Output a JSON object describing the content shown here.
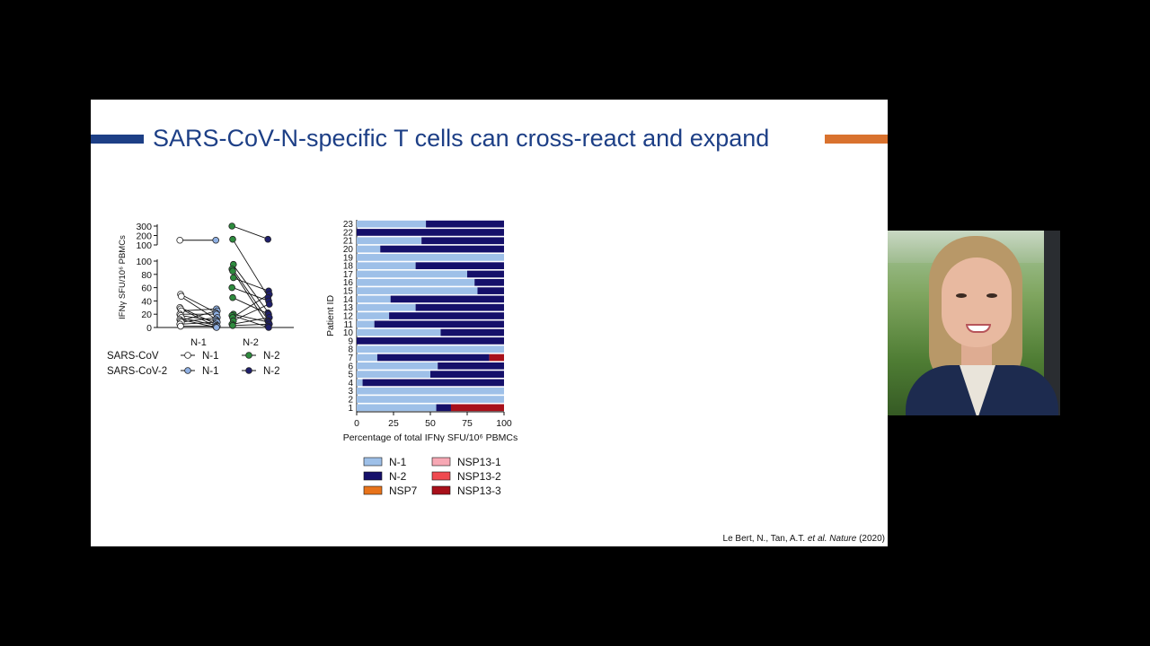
{
  "slide": {
    "title": "SARS-CoV-N-specific T cells can cross-react and expand",
    "citation_plain": "Le Bert, N., Tan, A.T. ",
    "citation_italic": "et al. Nature",
    "citation_year": " (2020)",
    "accent_blue": "#1d3f86",
    "accent_orange": "#d9722e"
  },
  "chart_data": [
    {
      "type": "scatter",
      "ylabel": "IFNγ SFU/10⁶ PBMCs",
      "ytick_labels": [
        "0",
        "20",
        "40",
        "60",
        "80",
        "100",
        "100",
        "200",
        "300"
      ],
      "categories": [
        "N-1",
        "N-2"
      ],
      "legend": {
        "row_labels": [
          "SARS-CoV",
          "SARS-CoV-2"
        ],
        "entries": [
          [
            "N-1",
            "N-2"
          ],
          [
            "N-1",
            "N-2"
          ]
        ]
      },
      "series": [
        {
          "group": "N-1",
          "virus": "SARS-CoV",
          "values": [
            150,
            50,
            47,
            30,
            28,
            25,
            20,
            18,
            15,
            12,
            10,
            8,
            5,
            2
          ]
        },
        {
          "group": "N-1",
          "virus": "SARS-CoV-2",
          "values": [
            150,
            28,
            25,
            22,
            20,
            15,
            12,
            10,
            8,
            5,
            3,
            2,
            1,
            0
          ]
        },
        {
          "group": "N-2",
          "virus": "SARS-CoV",
          "values": [
            300,
            160,
            95,
            88,
            85,
            75,
            60,
            45,
            20,
            18,
            15,
            10,
            5,
            3
          ]
        },
        {
          "group": "N-2",
          "virus": "SARS-CoV-2",
          "values": [
            160,
            55,
            50,
            45,
            40,
            35,
            22,
            20,
            15,
            10,
            8,
            5,
            2,
            0
          ]
        }
      ],
      "colors": {
        "sarscov_n1": "#ffffff",
        "sarscov_n2": "#2e8b3e",
        "sarscov2_n1": "#8fb0e3",
        "sarscov2_n2": "#1f1f6b"
      }
    },
    {
      "type": "bar",
      "orientation": "horizontal-stacked",
      "xlabel": "Percentage of total IFNγ SFU/10⁶ PBMCs",
      "ylabel": "Patient ID",
      "xlim": [
        0,
        100
      ],
      "xtick_labels": [
        "0",
        "25",
        "50",
        "75",
        "100"
      ],
      "categories": [
        "1",
        "2",
        "3",
        "4",
        "5",
        "6",
        "7",
        "8",
        "9",
        "10",
        "11",
        "12",
        "13",
        "14",
        "15",
        "16",
        "17",
        "18",
        "19",
        "20",
        "21",
        "22",
        "23"
      ],
      "series": [
        {
          "name": "N-1",
          "color": "#9ec0e8",
          "values": [
            54,
            100,
            100,
            4,
            50,
            55,
            14,
            100,
            0,
            57,
            12,
            22,
            40,
            23,
            82,
            80,
            75,
            40,
            100,
            16,
            44,
            0,
            47
          ]
        },
        {
          "name": "N-2",
          "color": "#15106a",
          "values": [
            10,
            0,
            0,
            96,
            50,
            45,
            76,
            0,
            100,
            43,
            88,
            78,
            60,
            77,
            18,
            20,
            25,
            60,
            0,
            84,
            56,
            100,
            53
          ]
        },
        {
          "name": "NSP7",
          "color": "#e8731a",
          "values": [
            0,
            0,
            0,
            0,
            0,
            0,
            0,
            0,
            0,
            0,
            0,
            0,
            0,
            0,
            0,
            0,
            0,
            0,
            0,
            0,
            0,
            0,
            0
          ]
        },
        {
          "name": "NSP13-1",
          "color": "#f7a8b4",
          "values": [
            0,
            0,
            0,
            0,
            0,
            0,
            0,
            0,
            0,
            0,
            0,
            0,
            0,
            0,
            0,
            0,
            0,
            0,
            0,
            0,
            0,
            0,
            0
          ]
        },
        {
          "name": "NSP13-2",
          "color": "#ef4a50",
          "values": [
            0,
            0,
            0,
            0,
            0,
            0,
            0,
            0,
            0,
            0,
            0,
            0,
            0,
            0,
            0,
            0,
            0,
            0,
            0,
            0,
            0,
            0,
            0
          ]
        },
        {
          "name": "NSP13-3",
          "color": "#a8101a",
          "values": [
            36,
            0,
            0,
            0,
            0,
            0,
            10,
            0,
            0,
            0,
            0,
            0,
            0,
            0,
            0,
            0,
            0,
            0,
            0,
            0,
            0,
            0,
            0
          ]
        }
      ]
    }
  ]
}
